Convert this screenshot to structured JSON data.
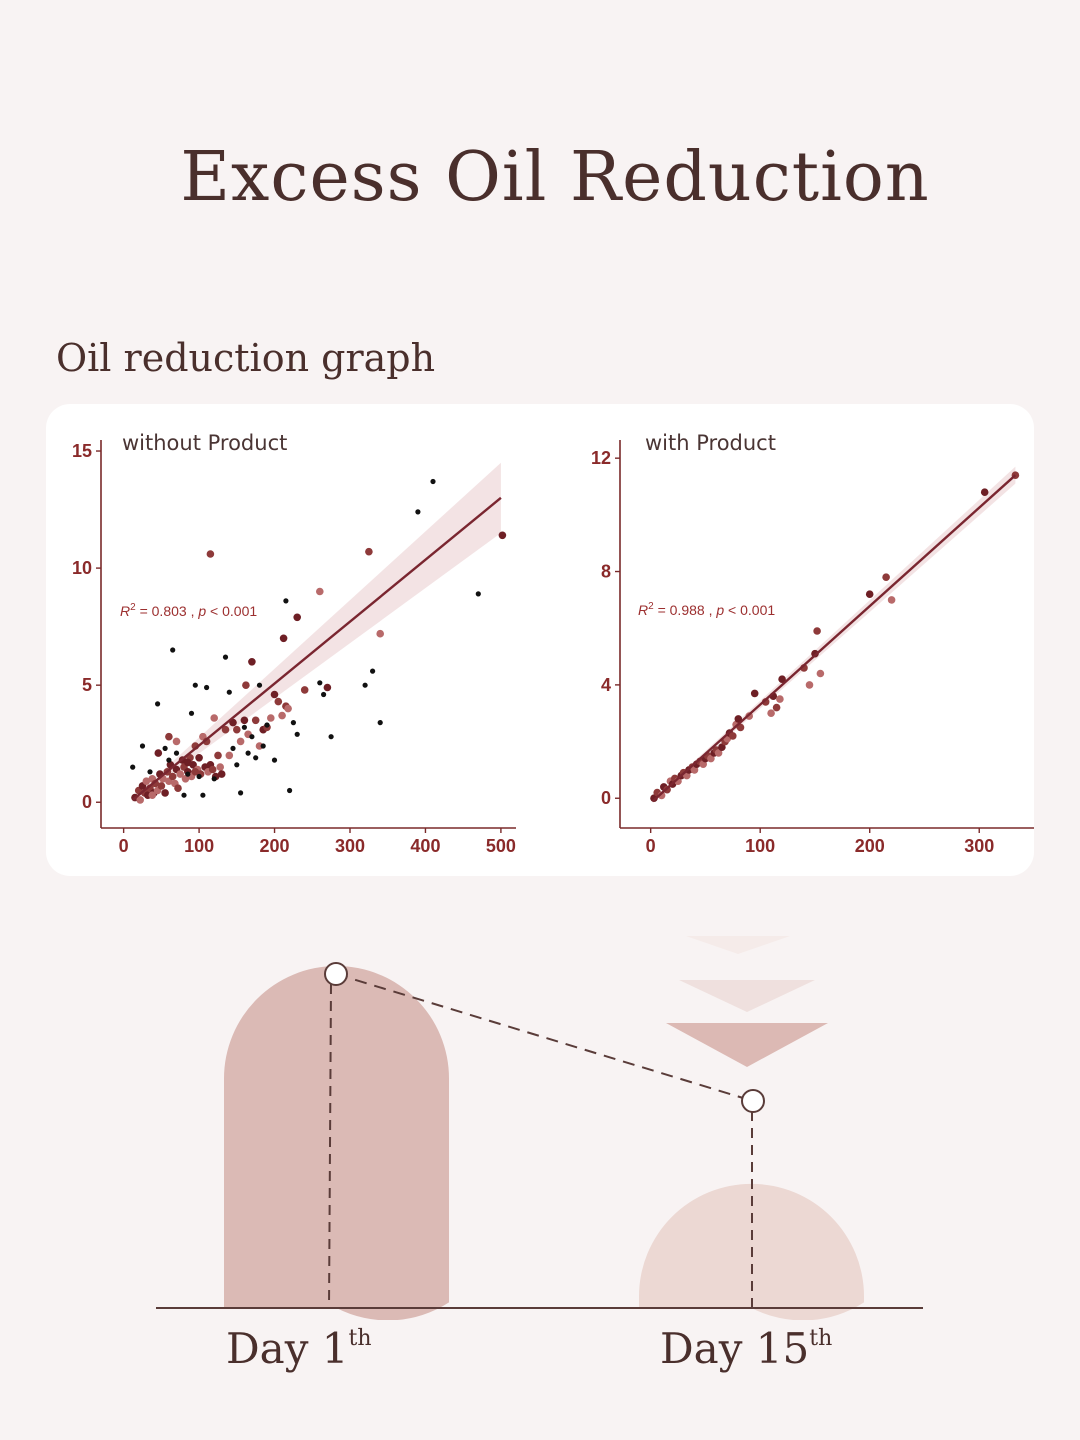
{
  "title": "Excess Oil Reduction",
  "subtitle": "Oil reduction graph",
  "colors": {
    "background": "#f8f3f3",
    "text": "#4a2f2c",
    "axis": "#7a2a2a",
    "regression_line": "#7a2630",
    "confidence_band": "#f1dedf",
    "point_dark": "#6e1f25",
    "point_mid": "#8e3a3a",
    "point_light": "#b86a6a",
    "point_black": "#111111",
    "day1_shape": "#dbbab5",
    "day15_shape": "#ecd8d3",
    "arrow_dark": "#dcb9b4",
    "arrow_light": "#efe0de"
  },
  "chart_data": [
    {
      "type": "scatter",
      "title": "without Product",
      "annotation": {
        "r2_label": "R",
        "r2_sup": "2",
        "text": " = 0.803 , ",
        "p_label": "p",
        "p_text": " < 0.001"
      },
      "xlim": [
        -30,
        520
      ],
      "ylim": [
        -1.1,
        15.3
      ],
      "xticks": [
        0,
        100,
        200,
        300,
        400,
        500
      ],
      "yticks": [
        0,
        5,
        10,
        15
      ],
      "regression": {
        "x": [
          12,
          500
        ],
        "y": [
          0.1,
          13.0
        ]
      },
      "band": {
        "upper_end": 14.5,
        "lower_end": 11.5
      },
      "series": [
        {
          "style": "red",
          "points": [
            [
              15,
              0.2
            ],
            [
              20,
              0.5
            ],
            [
              22,
              0.1
            ],
            [
              25,
              0.7
            ],
            [
              28,
              0.4
            ],
            [
              30,
              0.9
            ],
            [
              32,
              0.3
            ],
            [
              35,
              0.6
            ],
            [
              38,
              1.0
            ],
            [
              40,
              0.4
            ],
            [
              42,
              0.8
            ],
            [
              45,
              0.5
            ],
            [
              48,
              1.2
            ],
            [
              50,
              0.7
            ],
            [
              52,
              1.0
            ],
            [
              55,
              0.4
            ],
            [
              58,
              1.3
            ],
            [
              60,
              0.9
            ],
            [
              62,
              1.6
            ],
            [
              65,
              1.1
            ],
            [
              68,
              0.8
            ],
            [
              70,
              1.4
            ],
            [
              72,
              0.6
            ],
            [
              75,
              1.2
            ],
            [
              78,
              1.8
            ],
            [
              80,
              1.5
            ],
            [
              82,
              1.0
            ],
            [
              85,
              1.3
            ],
            [
              88,
              1.9
            ],
            [
              90,
              1.1
            ],
            [
              92,
              1.6
            ],
            [
              95,
              2.4
            ],
            [
              98,
              1.4
            ],
            [
              100,
              1.9
            ],
            [
              102,
              1.2
            ],
            [
              105,
              2.8
            ],
            [
              108,
              1.5
            ],
            [
              110,
              2.6
            ],
            [
              112,
              1.3
            ],
            [
              115,
              1.6
            ],
            [
              118,
              1.4
            ],
            [
              120,
              3.6
            ],
            [
              122,
              1.1
            ],
            [
              125,
              2.0
            ],
            [
              128,
              1.5
            ],
            [
              130,
              1.2
            ],
            [
              135,
              3.1
            ],
            [
              140,
              2.0
            ],
            [
              145,
              3.4
            ],
            [
              150,
              3.1
            ],
            [
              155,
              2.6
            ],
            [
              160,
              3.5
            ],
            [
              162,
              5.0
            ],
            [
              165,
              2.9
            ],
            [
              170,
              6.0
            ],
            [
              175,
              3.5
            ],
            [
              180,
              2.4
            ],
            [
              185,
              3.1
            ],
            [
              190,
              3.2
            ],
            [
              195,
              3.6
            ],
            [
              200,
              4.6
            ],
            [
              205,
              4.3
            ],
            [
              210,
              3.7
            ],
            [
              212,
              7.0
            ],
            [
              215,
              4.1
            ],
            [
              218,
              4.0
            ],
            [
              230,
              7.9
            ],
            [
              240,
              4.8
            ],
            [
              260,
              9.0
            ],
            [
              270,
              4.9
            ],
            [
              325,
              10.7
            ],
            [
              340,
              7.2
            ],
            [
              502,
              11.4
            ],
            [
              115,
              10.6
            ],
            [
              38,
              0.3
            ],
            [
              46,
              2.1
            ],
            [
              60,
              2.8
            ],
            [
              70,
              2.6
            ],
            [
              85,
              1.7
            ],
            [
              95,
              1.3
            ]
          ]
        },
        {
          "style": "black",
          "points": [
            [
              12,
              1.5
            ],
            [
              25,
              2.4
            ],
            [
              35,
              1.3
            ],
            [
              45,
              4.2
            ],
            [
              55,
              2.3
            ],
            [
              60,
              1.8
            ],
            [
              65,
              6.5
            ],
            [
              70,
              2.1
            ],
            [
              80,
              0.3
            ],
            [
              85,
              1.2
            ],
            [
              90,
              3.8
            ],
            [
              95,
              5.0
            ],
            [
              100,
              1.1
            ],
            [
              105,
              0.3
            ],
            [
              110,
              4.9
            ],
            [
              120,
              1.0
            ],
            [
              135,
              6.2
            ],
            [
              140,
              4.7
            ],
            [
              145,
              2.3
            ],
            [
              150,
              1.6
            ],
            [
              155,
              0.4
            ],
            [
              160,
              3.2
            ],
            [
              165,
              2.1
            ],
            [
              170,
              2.8
            ],
            [
              175,
              1.9
            ],
            [
              180,
              5.0
            ],
            [
              185,
              2.4
            ],
            [
              190,
              3.3
            ],
            [
              200,
              1.8
            ],
            [
              215,
              8.6
            ],
            [
              220,
              0.5
            ],
            [
              225,
              3.4
            ],
            [
              230,
              2.9
            ],
            [
              260,
              5.1
            ],
            [
              265,
              4.6
            ],
            [
              275,
              2.8
            ],
            [
              320,
              5.0
            ],
            [
              330,
              5.6
            ],
            [
              340,
              3.4
            ],
            [
              390,
              12.4
            ],
            [
              410,
              13.7
            ],
            [
              470,
              8.9
            ]
          ]
        }
      ]
    },
    {
      "type": "scatter",
      "title": "with Product",
      "annotation": {
        "r2_label": "R",
        "r2_sup": "2",
        "text": " = 0.988 , ",
        "p_label": "p",
        "p_text": " < 0.001"
      },
      "xlim": [
        -28,
        350
      ],
      "ylim": [
        -1.05,
        12.5
      ],
      "xticks": [
        0,
        100,
        200,
        300
      ],
      "yticks": [
        0,
        4,
        8,
        12
      ],
      "regression": {
        "x": [
          2,
          333
        ],
        "y": [
          -0.1,
          11.4
        ]
      },
      "band": {
        "upper_end": 11.7,
        "lower_end": 11.1
      },
      "series": [
        {
          "style": "red",
          "points": [
            [
              3,
              0.0
            ],
            [
              6,
              0.2
            ],
            [
              10,
              0.1
            ],
            [
              12,
              0.4
            ],
            [
              15,
              0.3
            ],
            [
              18,
              0.6
            ],
            [
              20,
              0.5
            ],
            [
              22,
              0.7
            ],
            [
              25,
              0.6
            ],
            [
              28,
              0.8
            ],
            [
              30,
              0.9
            ],
            [
              33,
              0.8
            ],
            [
              35,
              1.0
            ],
            [
              38,
              1.1
            ],
            [
              40,
              1.0
            ],
            [
              42,
              1.2
            ],
            [
              45,
              1.3
            ],
            [
              48,
              1.2
            ],
            [
              50,
              1.4
            ],
            [
              52,
              1.5
            ],
            [
              55,
              1.4
            ],
            [
              58,
              1.6
            ],
            [
              60,
              1.7
            ],
            [
              62,
              1.6
            ],
            [
              65,
              1.8
            ],
            [
              68,
              2.0
            ],
            [
              70,
              2.1
            ],
            [
              72,
              2.3
            ],
            [
              75,
              2.2
            ],
            [
              78,
              2.6
            ],
            [
              80,
              2.8
            ],
            [
              82,
              2.5
            ],
            [
              90,
              2.9
            ],
            [
              95,
              3.7
            ],
            [
              105,
              3.4
            ],
            [
              110,
              3.0
            ],
            [
              112,
              3.6
            ],
            [
              115,
              3.2
            ],
            [
              118,
              3.5
            ],
            [
              120,
              4.2
            ],
            [
              140,
              4.6
            ],
            [
              145,
              4.0
            ],
            [
              150,
              5.1
            ],
            [
              152,
              5.9
            ],
            [
              155,
              4.4
            ],
            [
              200,
              7.2
            ],
            [
              215,
              7.8
            ],
            [
              220,
              7.0
            ],
            [
              305,
              10.8
            ],
            [
              333,
              11.4
            ]
          ]
        }
      ]
    }
  ],
  "comparison": {
    "day1": {
      "label": "Day 1",
      "sup": "th",
      "level": 1.0
    },
    "day15": {
      "label": "Day 15",
      "sup": "th",
      "level": 0.6
    }
  }
}
